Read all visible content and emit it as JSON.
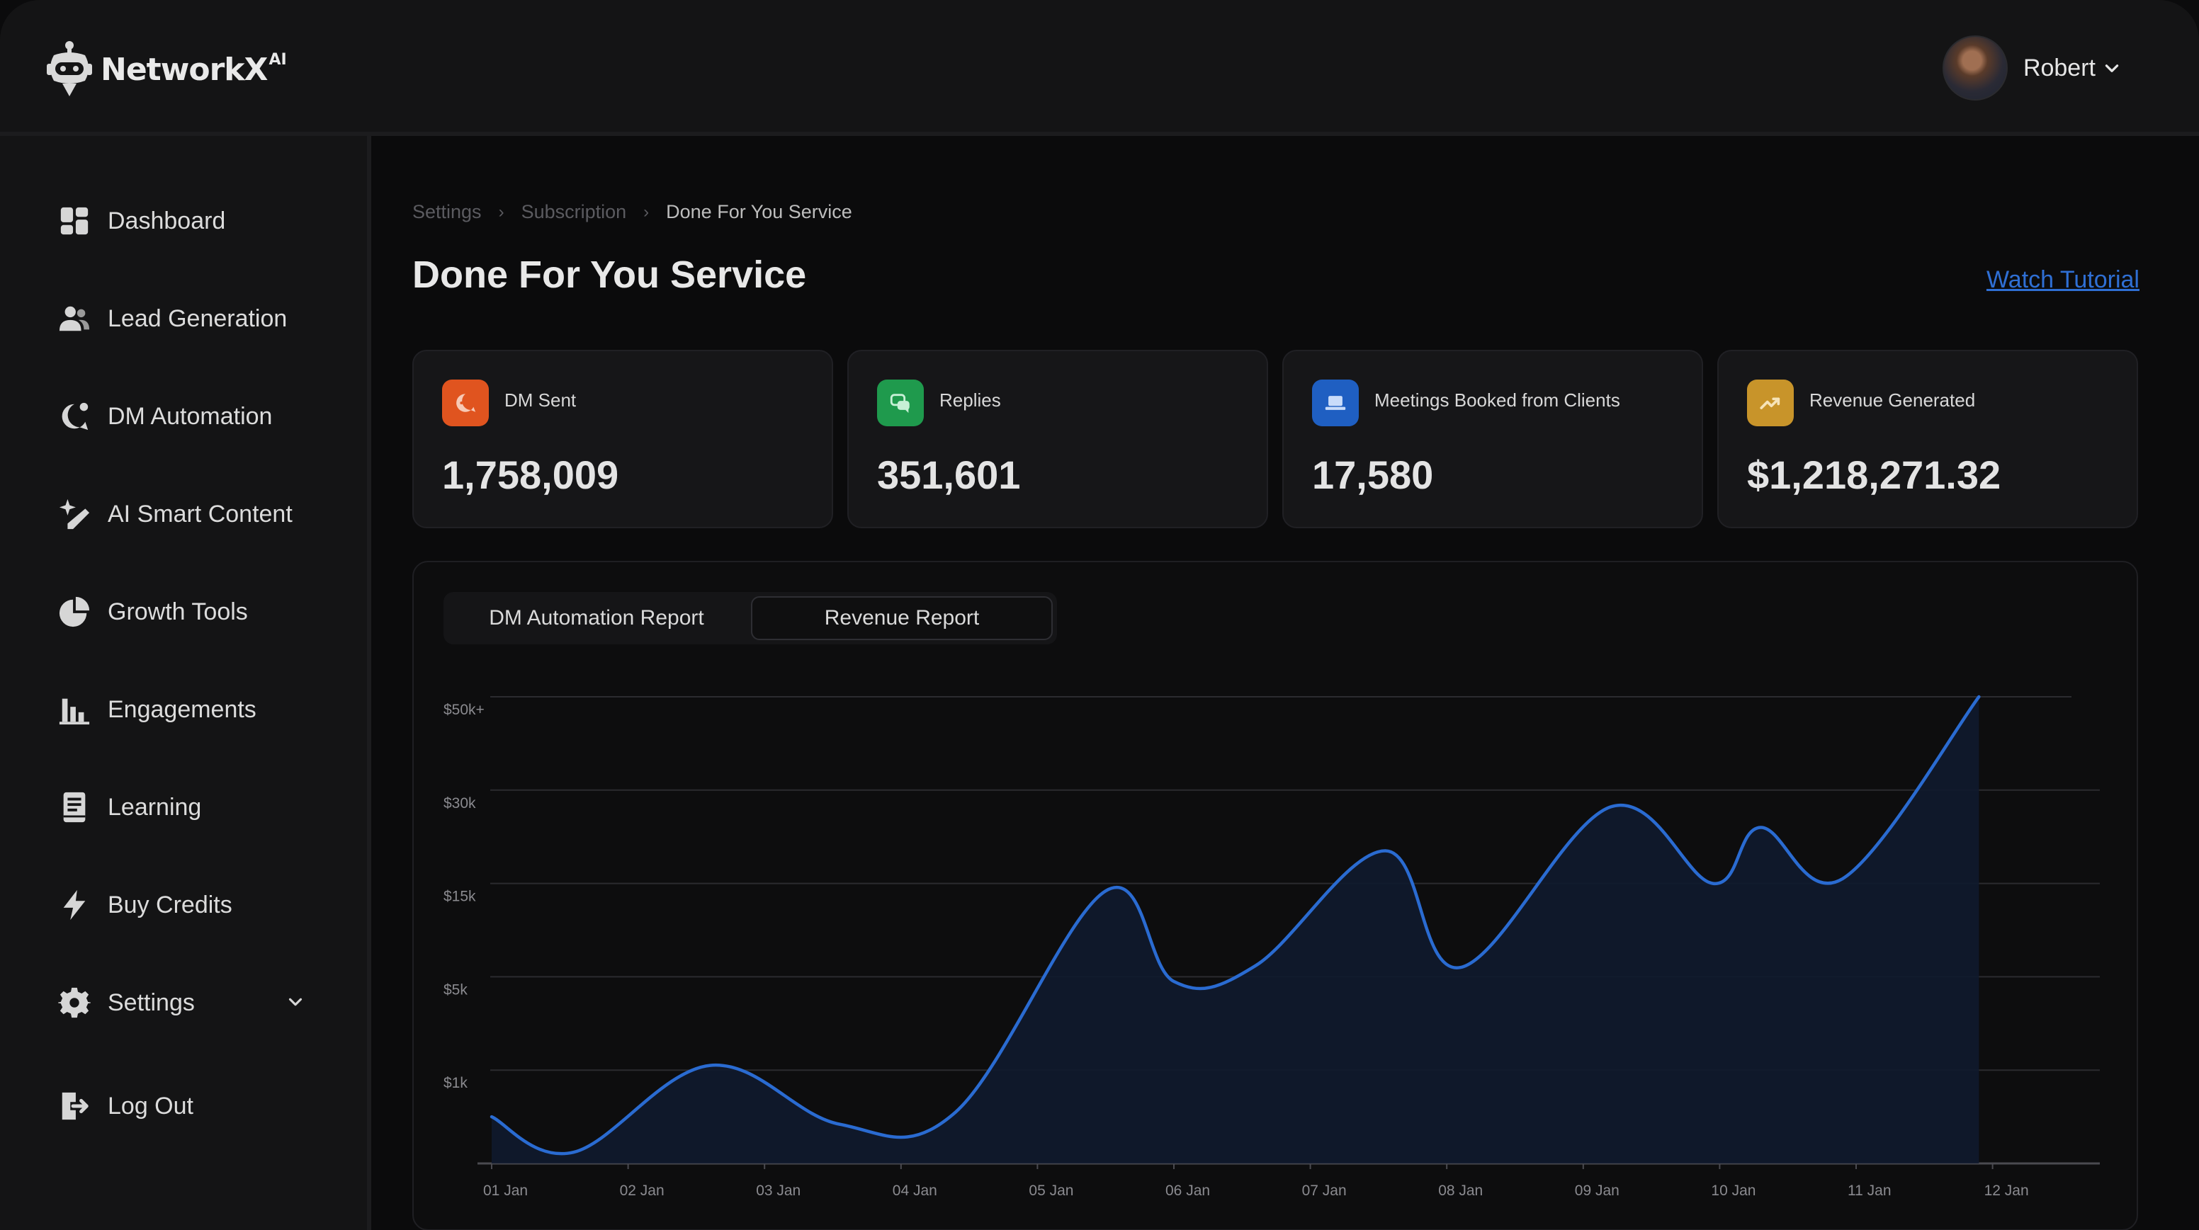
{
  "brand": {
    "name": "NetworkX",
    "sup": "AI"
  },
  "user": {
    "name": "Robert"
  },
  "sidebar": {
    "items": [
      {
        "label": "Dashboard",
        "icon": "grid-icon"
      },
      {
        "label": "Lead Generation",
        "icon": "users-icon"
      },
      {
        "label": "DM Automation",
        "icon": "chat-bubble-icon"
      },
      {
        "label": "AI Smart Content",
        "icon": "magic-pen-icon"
      },
      {
        "label": "Growth Tools",
        "icon": "pie-chart-icon"
      },
      {
        "label": "Engagements",
        "icon": "bar-chart-icon"
      },
      {
        "label": "Learning",
        "icon": "book-icon"
      },
      {
        "label": "Buy Credits",
        "icon": "lightning-icon"
      },
      {
        "label": "Settings",
        "icon": "gear-icon"
      },
      {
        "label": "Log Out",
        "icon": "logout-icon"
      }
    ]
  },
  "breadcrumb": [
    "Settings",
    "Subscription",
    "Done For You Service"
  ],
  "page": {
    "title": "Done For You Service",
    "watch_tutorial": "Watch Tutorial"
  },
  "stats": [
    {
      "label": "DM Sent",
      "value": "1,758,009",
      "color": "#e0541f",
      "icon": "message-icon"
    },
    {
      "label": "Replies",
      "value": "351,601",
      "color": "#1f9a4d",
      "icon": "reply-chat-icon"
    },
    {
      "label": "Meetings Booked from Clients",
      "value": "17,580",
      "color": "#1f5fc2",
      "icon": "laptop-icon"
    },
    {
      "label": "Revenue Generated",
      "value": "$1,218,271.32",
      "color": "#c8942a",
      "icon": "trend-up-icon"
    }
  ],
  "tabs": [
    "DM Automation Report",
    "Revenue Report"
  ],
  "colors": {
    "line": "#2a6bd1",
    "fill": "#0f1a2e"
  },
  "chart_data": {
    "type": "area",
    "title": "",
    "xlabel": "",
    "ylabel": "",
    "categories": [
      "01 Jan",
      "02 Jan",
      "03 Jan",
      "04 Jan",
      "05 Jan",
      "06 Jan",
      "07 Jan",
      "08 Jan",
      "09 Jan",
      "10 Jan",
      "11 Jan",
      "12 Jan"
    ],
    "y_ticks": [
      "$50k+",
      "$30k",
      "$15k",
      "$5k",
      "$1k"
    ],
    "y_scale": "ordinal-bands",
    "series": [
      {
        "values_by_position": [
          [
            0,
            0.5
          ],
          [
            0.6,
            0.12
          ],
          [
            1.6,
            1.05
          ],
          [
            2.55,
            0.42
          ],
          [
            3.4,
            0.55
          ],
          [
            4.5,
            2.92
          ],
          [
            5.0,
            1.95
          ],
          [
            5.6,
            2.12
          ],
          [
            6.55,
            3.35
          ],
          [
            7.1,
            2.1
          ],
          [
            8.2,
            3.82
          ],
          [
            8.95,
            3.0
          ],
          [
            9.3,
            3.6
          ],
          [
            9.9,
            3.05
          ],
          [
            10.9,
            5.0
          ]
        ]
      }
    ],
    "grid": true,
    "legend": "none"
  }
}
